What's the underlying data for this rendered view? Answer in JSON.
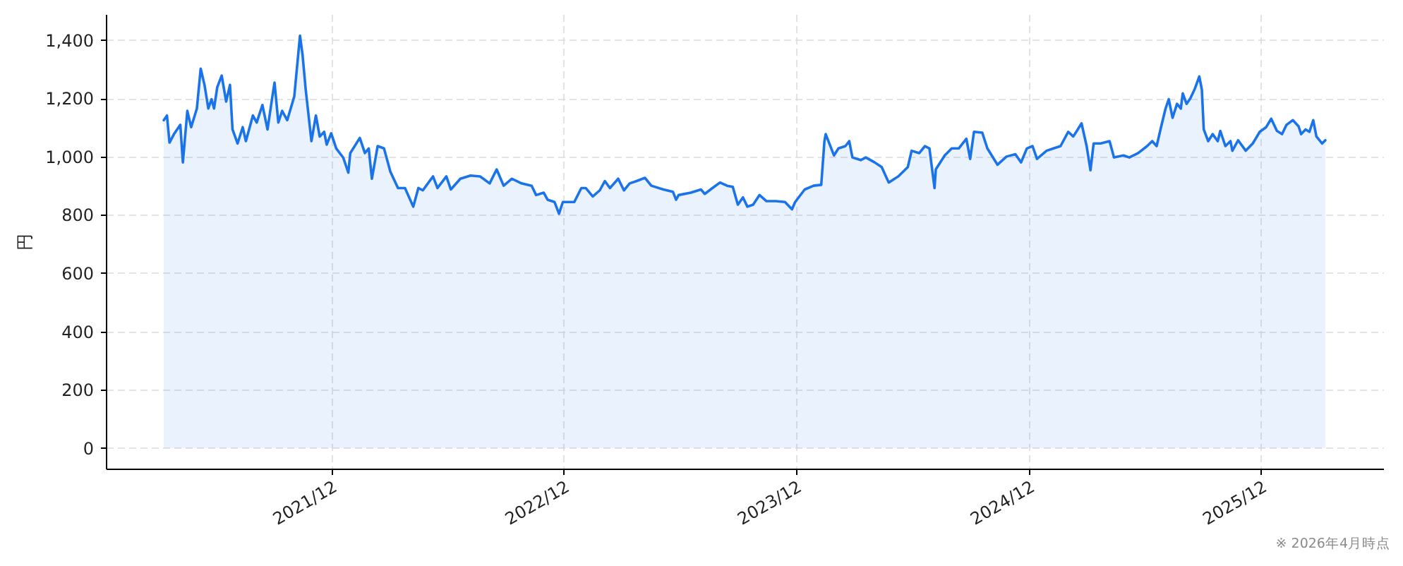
{
  "chart_data": {
    "type": "area",
    "ylabel": "円",
    "annotations": [
      "※ 2026年4月時点"
    ],
    "color": "#1a73e8",
    "grid": true,
    "xlim": [
      "2021-01-11",
      "2026-07-11"
    ],
    "ylim": [
      -71,
      1489
    ],
    "xticks": [
      {
        "value": "2021-12-31",
        "label": "2021/12"
      },
      {
        "value": "2022-12-31",
        "label": "2022/12"
      },
      {
        "value": "2023-12-31",
        "label": "2023/12"
      },
      {
        "value": "2024-12-31",
        "label": "2024/12"
      },
      {
        "value": "2025-12-31",
        "label": "2025/12"
      }
    ],
    "yticks": [
      0,
      200,
      400,
      600,
      800,
      {
        "value": 1000,
        "label": "1,000"
      },
      {
        "value": 1200,
        "label": "1,200"
      },
      {
        "value": 1400,
        "label": "1,400"
      }
    ],
    "x": [
      "2021-04-12",
      "2021-04-17",
      "2021-04-21",
      "2021-04-28",
      "2021-05-08",
      "2021-05-12",
      "2021-05-19",
      "2021-05-25",
      "2021-06-03",
      "2021-06-09",
      "2021-06-15",
      "2021-06-21",
      "2021-06-26",
      "2021-06-30",
      "2021-07-05",
      "2021-07-12",
      "2021-07-19",
      "2021-07-25",
      "2021-07-29",
      "2021-08-06",
      "2021-08-14",
      "2021-08-19",
      "2021-08-30",
      "2021-09-05",
      "2021-09-14",
      "2021-09-22",
      "2021-09-29",
      "2021-10-03",
      "2021-10-09",
      "2021-10-15",
      "2021-10-23",
      "2021-11-03",
      "2021-11-12",
      "2021-11-16",
      "2021-11-21",
      "2021-11-30",
      "2021-12-07",
      "2021-12-13",
      "2021-12-20",
      "2021-12-24",
      "2021-12-31",
      "2022-01-08",
      "2022-01-19",
      "2022-01-27",
      "2022-01-30",
      "2022-02-14",
      "2022-02-22",
      "2022-02-28",
      "2022-03-05",
      "2022-03-14",
      "2022-03-24",
      "2022-04-03",
      "2022-04-15",
      "2022-04-26",
      "2022-05-09",
      "2022-05-17",
      "2022-05-24",
      "2022-06-09",
      "2022-06-16",
      "2022-06-30",
      "2022-07-07",
      "2022-07-22",
      "2022-08-07",
      "2022-08-22",
      "2022-09-06",
      "2022-09-17",
      "2022-09-28",
      "2022-10-11",
      "2022-10-26",
      "2022-11-11",
      "2022-11-18",
      "2022-11-30",
      "2022-12-06",
      "2022-12-17",
      "2022-12-24",
      "2022-12-30",
      "2023-01-09",
      "2023-01-17",
      "2023-01-28",
      "2023-02-04",
      "2023-02-15",
      "2023-02-26",
      "2023-03-06",
      "2023-03-14",
      "2023-03-27",
      "2023-04-05",
      "2023-04-14",
      "2023-04-25",
      "2023-05-08",
      "2023-05-18",
      "2023-06-06",
      "2023-06-21",
      "2023-06-26",
      "2023-06-30",
      "2023-07-19",
      "2023-08-04",
      "2023-08-10",
      "2023-08-22",
      "2023-09-03",
      "2023-09-14",
      "2023-09-23",
      "2023-10-01",
      "2023-10-09",
      "2023-10-16",
      "2023-10-25",
      "2023-11-04",
      "2023-11-15",
      "2023-11-30",
      "2023-12-14",
      "2023-12-25",
      "2023-12-30",
      "2024-01-14",
      "2024-01-28",
      "2024-02-09",
      "2024-02-14",
      "2024-02-16",
      "2024-02-29",
      "2024-03-07",
      "2024-03-18",
      "2024-03-24",
      "2024-03-29",
      "2024-04-11",
      "2024-04-19",
      "2024-05-03",
      "2024-05-14",
      "2024-05-25",
      "2024-06-09",
      "2024-06-24",
      "2024-06-30",
      "2024-07-12",
      "2024-07-21",
      "2024-07-28",
      "2024-08-05",
      "2024-08-07",
      "2024-08-21",
      "2024-09-01",
      "2024-09-12",
      "2024-09-24",
      "2024-09-30",
      "2024-10-06",
      "2024-10-19",
      "2024-10-27",
      "2024-11-12",
      "2024-11-26",
      "2024-12-10",
      "2024-12-19",
      "2024-12-28",
      "2025-01-06",
      "2025-01-13",
      "2025-01-28",
      "2025-02-08",
      "2025-02-19",
      "2025-03-03",
      "2025-03-11",
      "2025-03-18",
      "2025-03-24",
      "2025-04-01",
      "2025-04-07",
      "2025-04-12",
      "2025-04-23",
      "2025-05-07",
      "2025-05-14",
      "2025-05-29",
      "2025-06-07",
      "2025-06-21",
      "2025-07-05",
      "2025-07-13",
      "2025-07-20",
      "2025-07-26",
      "2025-08-03",
      "2025-08-08",
      "2025-08-14",
      "2025-08-21",
      "2025-08-27",
      "2025-08-30",
      "2025-09-05",
      "2025-09-11",
      "2025-09-18",
      "2025-09-25",
      "2025-09-29",
      "2025-10-02",
      "2025-10-09",
      "2025-10-16",
      "2025-10-24",
      "2025-10-28",
      "2025-11-05",
      "2025-11-13",
      "2025-11-16",
      "2025-11-25",
      "2025-12-07",
      "2025-12-18",
      "2025-12-29",
      "2026-01-08",
      "2026-01-16",
      "2026-01-25",
      "2026-02-02",
      "2026-02-09",
      "2026-02-19",
      "2026-02-28",
      "2026-03-04",
      "2026-03-11",
      "2026-03-17",
      "2026-03-23",
      "2026-03-28",
      "2026-04-06",
      "2026-04-11"
    ],
    "values": [
      1125,
      1141,
      1048,
      1077,
      1109,
      980,
      1157,
      1101,
      1165,
      1302,
      1246,
      1165,
      1197,
      1165,
      1238,
      1278,
      1189,
      1246,
      1093,
      1045,
      1101,
      1053,
      1141,
      1117,
      1177,
      1093,
      1197,
      1254,
      1117,
      1157,
      1125,
      1206,
      1415,
      1350,
      1230,
      1053,
      1141,
      1069,
      1085,
      1041,
      1080,
      1028,
      996,
      945,
      1012,
      1064,
      1012,
      1028,
      924,
      1036,
      1028,
      948,
      892,
      892,
      828,
      892,
      884,
      932,
      892,
      932,
      887,
      924,
      935,
      932,
      908,
      956,
      900,
      924,
      908,
      900,
      868,
      876,
      852,
      844,
      804,
      844,
      844,
      844,
      892,
      892,
      863,
      884,
      916,
      892,
      924,
      884,
      908,
      916,
      927,
      900,
      887,
      879,
      852,
      868,
      876,
      887,
      872,
      892,
      911,
      900,
      896,
      835,
      860,
      828,
      835,
      868,
      847,
      847,
      844,
      819,
      844,
      887,
      900,
      903,
      1053,
      1077,
      1004,
      1028,
      1036,
      1053,
      997,
      988,
      997,
      980,
      964,
      911,
      932,
      964,
      1020,
      1012,
      1036,
      1028,
      892,
      956,
      1004,
      1028,
      1028,
      1061,
      992,
      1085,
      1082,
      1028,
      972,
      1000,
      1008,
      980,
      1028,
      1036,
      992,
      1020,
      1028,
      1036,
      1085,
      1069,
      1093,
      1114,
      1036,
      953,
      1045,
      1045,
      1053,
      997,
      1004,
      997,
      1012,
      1036,
      1053,
      1036,
      1093,
      1165,
      1197,
      1133,
      1181,
      1165,
      1217,
      1181,
      1200,
      1233,
      1275,
      1230,
      1093,
      1053,
      1077,
      1053,
      1088,
      1036,
      1053,
      1020,
      1056,
      1020,
      1045,
      1085,
      1101,
      1130,
      1088,
      1077,
      1109,
      1125,
      1104,
      1077,
      1093,
      1085,
      1125,
      1069,
      1045,
      1056
    ]
  }
}
